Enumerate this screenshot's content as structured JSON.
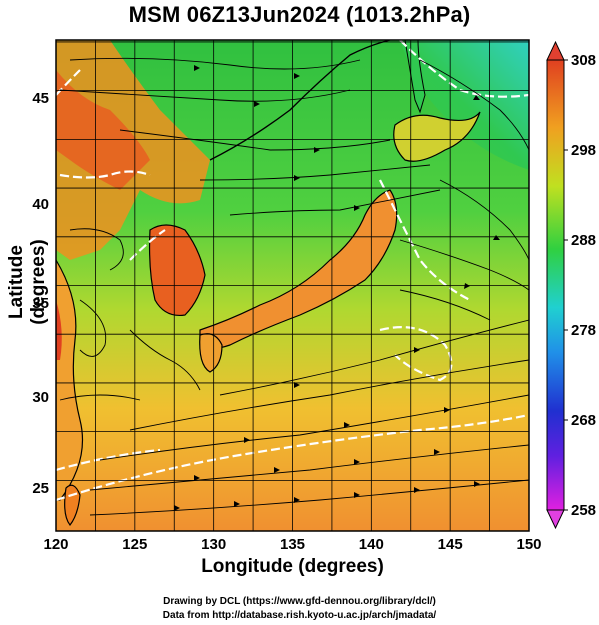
{
  "title": "MSM 06Z13Jun2024 (1013.2hPa)",
  "x_axis": {
    "label": "Longitude (degrees)",
    "range": [
      120,
      150
    ],
    "ticks": [
      "120",
      "125",
      "130",
      "135",
      "140",
      "145",
      "150"
    ]
  },
  "y_axis": {
    "label": "Latitude  (degrees)",
    "range": [
      22.4,
      47.6
    ],
    "ticks": [
      "25",
      "30",
      "35",
      "40",
      "45"
    ]
  },
  "colorbar": {
    "min": 258,
    "max": 308,
    "ticks": [
      "258",
      "268",
      "278",
      "288",
      "298",
      "308"
    ],
    "colors": [
      "#e020e0",
      "#2020d0",
      "#20a0e0",
      "#20d0a0",
      "#30d040",
      "#c0e020",
      "#f0a020",
      "#e04020"
    ]
  },
  "credits": {
    "line1": "Drawing by DCL (https://www.gfd-dennou.org/library/dcl/)",
    "line2": "Data from http://database.rish.kyoto-u.ac.jp/arch/jmadata/"
  },
  "map_colors": {
    "land_north": "#20c040",
    "sea_north": "#40d040",
    "sea_south": "#f0c030",
    "warm_land": "#e86020",
    "contour": "#ffffff",
    "coastline": "#000000",
    "grid": "#000000"
  }
}
